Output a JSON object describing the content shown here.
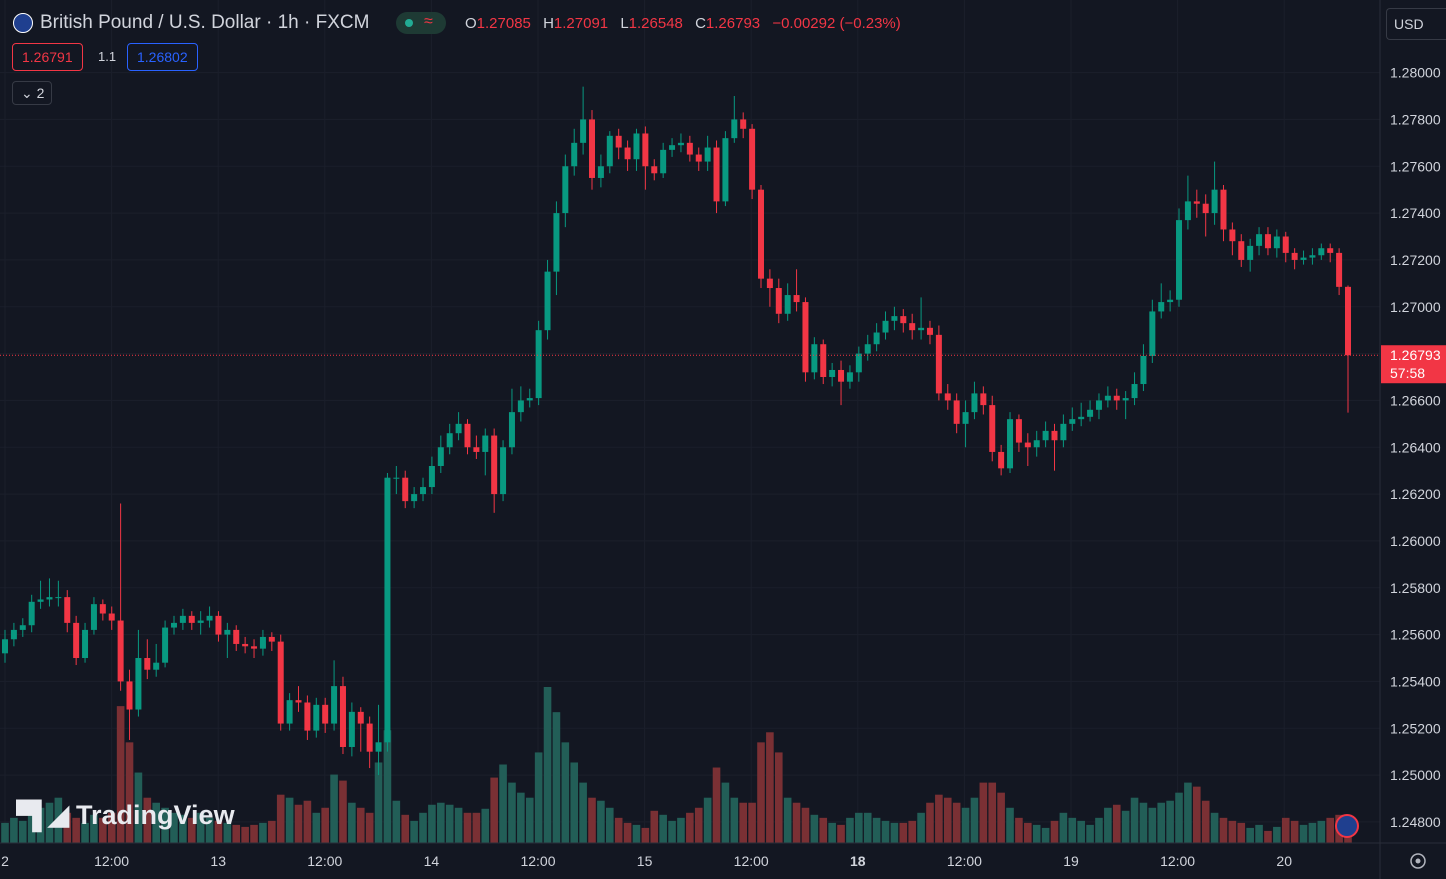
{
  "header": {
    "symbol": "British Pound / U.S. Dollar · 1h · FXCM",
    "ohlc_labels": [
      "O",
      "H",
      "L",
      "C"
    ],
    "change": "−0.00292 (−0.23%)",
    "sell_price": "1.26791",
    "spread": "1.1",
    "buy_price": "1.26802",
    "indicators_count": "2",
    "currency": "USD",
    "watermark": "TradingView"
  },
  "chart_data": {
    "type": "candlestick",
    "up_color": "#089981",
    "down_color": "#f23645",
    "volume_up_color": "#225e57",
    "volume_down_color": "#7a3034",
    "ylim": [
      1.2471,
      1.2831
    ],
    "yticks": [
      {
        "value": 1.248,
        "label": "1.24800"
      },
      {
        "value": 1.25,
        "label": "1.25000"
      },
      {
        "value": 1.252,
        "label": "1.25200"
      },
      {
        "value": 1.254,
        "label": "1.25400"
      },
      {
        "value": 1.256,
        "label": "1.25600"
      },
      {
        "value": 1.258,
        "label": "1.25800"
      },
      {
        "value": 1.26,
        "label": "1.26000"
      },
      {
        "value": 1.262,
        "label": "1.26200"
      },
      {
        "value": 1.264,
        "label": "1.26400"
      },
      {
        "value": 1.266,
        "label": "1.26600"
      },
      {
        "value": 1.268,
        "label": "1.26800"
      },
      {
        "value": 1.27,
        "label": "1.27000"
      },
      {
        "value": 1.272,
        "label": "1.27200"
      },
      {
        "value": 1.274,
        "label": "1.27400"
      },
      {
        "value": 1.276,
        "label": "1.27600"
      },
      {
        "value": 1.278,
        "label": "1.27800"
      },
      {
        "value": 1.28,
        "label": "1.28000"
      }
    ],
    "grid": true,
    "x_labels": [
      "2",
      "12:00",
      "13",
      "12:00",
      "14",
      "12:00",
      "15",
      "12:00",
      "18",
      "12:00",
      "19",
      "12:00",
      "20"
    ],
    "countdown": "57:58",
    "open": [
      1.2552,
      1.2558,
      1.2562,
      1.2564,
      1.2574,
      1.2575,
      1.2576,
      1.2576,
      1.2565,
      1.255,
      1.2562,
      1.2573,
      1.2569,
      1.2566,
      1.254,
      1.2528,
      1.255,
      1.2545,
      1.2548,
      1.2563,
      1.2565,
      1.2568,
      1.2565,
      1.2566,
      1.2568,
      1.256,
      1.2562,
      1.2556,
      1.2555,
      1.2554,
      1.2559,
      1.2557,
      1.2522,
      1.2532,
      1.2531,
      1.2519,
      1.253,
      1.2522,
      1.2538,
      1.2512,
      1.2527,
      1.2522,
      1.251,
      1.2514,
      1.2627,
      1.2627,
      1.2617,
      1.262,
      1.2623,
      1.2632,
      1.264,
      1.2646,
      1.265,
      1.264,
      1.2638,
      1.2645,
      1.262,
      1.264,
      1.2655,
      1.266,
      1.2661,
      1.269,
      1.2715,
      1.274,
      1.276,
      1.277,
      1.278,
      1.2755,
      1.276,
      1.2773,
      1.2768,
      1.2763,
      1.2774,
      1.276,
      1.2757,
      1.2767,
      1.2769,
      1.277,
      1.2765,
      1.2762,
      1.2768,
      1.2745,
      1.2772,
      1.278,
      1.2776,
      1.275,
      1.2712,
      1.2708,
      1.2697,
      1.2705,
      1.2702,
      1.2672,
      1.2684,
      1.267,
      1.2673,
      1.2668,
      1.2672,
      1.268,
      1.2684,
      1.2689,
      1.2694,
      1.2696,
      1.2693,
      1.269,
      1.2691,
      1.2688,
      1.2663,
      1.266,
      1.265,
      1.2655,
      1.2663,
      1.2658,
      1.2638,
      1.2631,
      1.2652,
      1.2642,
      1.264,
      1.2643,
      1.2647,
      1.2643,
      1.265,
      1.2652,
      1.2653,
      1.2656,
      1.266,
      1.2662,
      1.266,
      1.2661,
      1.2667,
      1.2679,
      1.2698,
      1.2702,
      1.2703,
      1.2737,
      1.2745,
      1.2744,
      1.274,
      1.275,
      1.2733,
      1.2728,
      1.272,
      1.2726,
      1.2731,
      1.2725,
      1.273,
      1.2723,
      1.272,
      1.2721,
      1.2722,
      1.2725,
      1.2723,
      1.27085
    ],
    "high": [
      1.2562,
      1.2565,
      1.2567,
      1.2577,
      1.2583,
      1.2584,
      1.2583,
      1.2579,
      1.2568,
      1.2565,
      1.2576,
      1.2575,
      1.2572,
      1.2616,
      1.2545,
      1.2562,
      1.2558,
      1.2556,
      1.2566,
      1.2568,
      1.2571,
      1.257,
      1.257,
      1.2572,
      1.257,
      1.2565,
      1.2564,
      1.2559,
      1.2558,
      1.2562,
      1.2561,
      1.256,
      1.2535,
      1.2538,
      1.2534,
      1.2533,
      1.2533,
      1.2549,
      1.2542,
      1.2531,
      1.2529,
      1.2525,
      1.253,
      1.2629,
      1.2632,
      1.263,
      1.2623,
      1.2627,
      1.2636,
      1.2645,
      1.265,
      1.2655,
      1.2652,
      1.2645,
      1.2648,
      1.2648,
      1.2643,
      1.2665,
      1.2666,
      1.2665,
      1.2694,
      1.272,
      1.2745,
      1.2765,
      1.2776,
      1.2794,
      1.2784,
      1.2765,
      1.2775,
      1.2776,
      1.2771,
      1.2776,
      1.2777,
      1.2763,
      1.277,
      1.2772,
      1.2774,
      1.2773,
      1.2768,
      1.2773,
      1.2771,
      1.2775,
      1.279,
      1.2783,
      1.2778,
      1.2752,
      1.2716,
      1.2712,
      1.271,
      1.2716,
      1.2704,
      1.2687,
      1.2686,
      1.2676,
      1.2677,
      1.2675,
      1.2683,
      1.2688,
      1.2693,
      1.2698,
      1.27,
      1.2699,
      1.2697,
      1.2704,
      1.2694,
      1.2692,
      1.2667,
      1.2663,
      1.266,
      1.2668,
      1.2666,
      1.2662,
      1.2641,
      1.2655,
      1.2654,
      1.2646,
      1.2647,
      1.2651,
      1.265,
      1.2654,
      1.2657,
      1.2659,
      1.266,
      1.2663,
      1.2666,
      1.2665,
      1.2664,
      1.2672,
      1.2684,
      1.2703,
      1.271,
      1.2707,
      1.2742,
      1.2756,
      1.275,
      1.2748,
      1.2762,
      1.2752,
      1.2736,
      1.2731,
      1.2729,
      1.2734,
      1.2734,
      1.2733,
      1.2732,
      1.2725,
      1.2724,
      1.2725,
      1.2727,
      1.2727,
      1.2725,
      1.27091
    ],
    "low": [
      1.2548,
      1.2555,
      1.2559,
      1.2561,
      1.2571,
      1.2572,
      1.2572,
      1.2561,
      1.2547,
      1.2548,
      1.256,
      1.2566,
      1.2562,
      1.2536,
      1.2515,
      1.2525,
      1.2541,
      1.2542,
      1.2546,
      1.256,
      1.2562,
      1.2562,
      1.256,
      1.2563,
      1.2557,
      1.255,
      1.2553,
      1.2552,
      1.255,
      1.2551,
      1.2553,
      1.2519,
      1.2519,
      1.2527,
      1.2515,
      1.2516,
      1.2518,
      1.2519,
      1.2509,
      1.2508,
      1.251,
      1.2503,
      1.25,
      1.251,
      1.262,
      1.2614,
      1.2614,
      1.2617,
      1.262,
      1.2629,
      1.2637,
      1.2643,
      1.2637,
      1.2635,
      1.2628,
      1.2612,
      1.2617,
      1.2637,
      1.2651,
      1.2657,
      1.2658,
      1.2686,
      1.2705,
      1.2734,
      1.2756,
      1.2765,
      1.275,
      1.2751,
      1.2757,
      1.2763,
      1.2758,
      1.2758,
      1.275,
      1.2754,
      1.2755,
      1.2764,
      1.2766,
      1.2762,
      1.2758,
      1.2758,
      1.274,
      1.2743,
      1.277,
      1.2772,
      1.2746,
      1.2708,
      1.27,
      1.2693,
      1.2694,
      1.2698,
      1.2668,
      1.2669,
      1.2667,
      1.2666,
      1.2658,
      1.2665,
      1.2668,
      1.2677,
      1.2681,
      1.2686,
      1.269,
      1.2689,
      1.2686,
      1.2686,
      1.2684,
      1.266,
      1.2656,
      1.2646,
      1.264,
      1.2652,
      1.2654,
      1.2634,
      1.2628,
      1.2629,
      1.2638,
      1.2632,
      1.2636,
      1.264,
      1.263,
      1.264,
      1.2647,
      1.2649,
      1.2651,
      1.2652,
      1.2657,
      1.2656,
      1.2652,
      1.2658,
      1.2664,
      1.2676,
      1.2695,
      1.2698,
      1.27,
      1.2733,
      1.2738,
      1.273,
      1.2735,
      1.2728,
      1.2722,
      1.2717,
      1.2715,
      1.2722,
      1.2722,
      1.2721,
      1.2719,
      1.2716,
      1.2718,
      1.2718,
      1.272,
      1.2719,
      1.2705,
      1.26548
    ],
    "close": [
      1.2558,
      1.2562,
      1.2564,
      1.2574,
      1.2575,
      1.2576,
      1.2576,
      1.2565,
      1.255,
      1.2562,
      1.2573,
      1.2569,
      1.2566,
      1.254,
      1.2528,
      1.255,
      1.2545,
      1.2548,
      1.2563,
      1.2565,
      1.2568,
      1.2565,
      1.2566,
      1.2568,
      1.256,
      1.2562,
      1.2556,
      1.2555,
      1.2554,
      1.2559,
      1.2557,
      1.2522,
      1.2532,
      1.2531,
      1.2519,
      1.253,
      1.2522,
      1.2538,
      1.2512,
      1.2527,
      1.2522,
      1.251,
      1.2514,
      1.2627,
      1.2627,
      1.2617,
      1.262,
      1.2623,
      1.2632,
      1.264,
      1.2646,
      1.265,
      1.264,
      1.2638,
      1.2645,
      1.262,
      1.264,
      1.2655,
      1.266,
      1.2661,
      1.269,
      1.2715,
      1.274,
      1.276,
      1.277,
      1.278,
      1.2755,
      1.276,
      1.2773,
      1.2768,
      1.2763,
      1.2774,
      1.276,
      1.2757,
      1.2767,
      1.2769,
      1.277,
      1.2765,
      1.2762,
      1.2768,
      1.2745,
      1.2772,
      1.278,
      1.2776,
      1.275,
      1.2712,
      1.2708,
      1.2697,
      1.2705,
      1.2702,
      1.2672,
      1.2684,
      1.267,
      1.2673,
      1.2668,
      1.2672,
      1.268,
      1.2684,
      1.2689,
      1.2694,
      1.2696,
      1.2693,
      1.269,
      1.2691,
      1.2688,
      1.2663,
      1.266,
      1.265,
      1.2655,
      1.2663,
      1.2658,
      1.2638,
      1.2631,
      1.2652,
      1.2642,
      1.264,
      1.2643,
      1.2647,
      1.2643,
      1.265,
      1.2652,
      1.2653,
      1.2656,
      1.266,
      1.2662,
      1.266,
      1.2661,
      1.2667,
      1.2679,
      1.2698,
      1.2702,
      1.2703,
      1.2737,
      1.2745,
      1.2744,
      1.274,
      1.275,
      1.2733,
      1.2728,
      1.272,
      1.2726,
      1.2731,
      1.2725,
      1.273,
      1.2723,
      1.272,
      1.2721,
      1.2722,
      1.2725,
      1.2723,
      1.27085,
      1.26793
    ],
    "volume": [
      20,
      25,
      22,
      30,
      35,
      40,
      45,
      30,
      25,
      20,
      28,
      25,
      30,
      136,
      100,
      70,
      45,
      40,
      35,
      30,
      28,
      25,
      30,
      25,
      22,
      20,
      18,
      16,
      18,
      20,
      22,
      48,
      45,
      38,
      42,
      30,
      35,
      68,
      62,
      40,
      35,
      30,
      80,
      112,
      42,
      28,
      22,
      30,
      38,
      40,
      38,
      35,
      30,
      30,
      34,
      65,
      78,
      60,
      50,
      45,
      90,
      155,
      130,
      100,
      80,
      60,
      45,
      42,
      35,
      25,
      20,
      18,
      15,
      32,
      28,
      22,
      25,
      30,
      35,
      45,
      75,
      60,
      45,
      40,
      40,
      100,
      110,
      90,
      45,
      40,
      35,
      28,
      25,
      20,
      18,
      25,
      30,
      30,
      25,
      22,
      20,
      20,
      22,
      30,
      40,
      48,
      45,
      40,
      35,
      45,
      60,
      60,
      50,
      35,
      25,
      20,
      18,
      15,
      22,
      30,
      25,
      22,
      18,
      25,
      35,
      38,
      32,
      45,
      40,
      35,
      40,
      42,
      50,
      60,
      56,
      42,
      30,
      25,
      22,
      20,
      15,
      18,
      12,
      16,
      25,
      22,
      18,
      20,
      22,
      25,
      28,
      20
    ]
  }
}
